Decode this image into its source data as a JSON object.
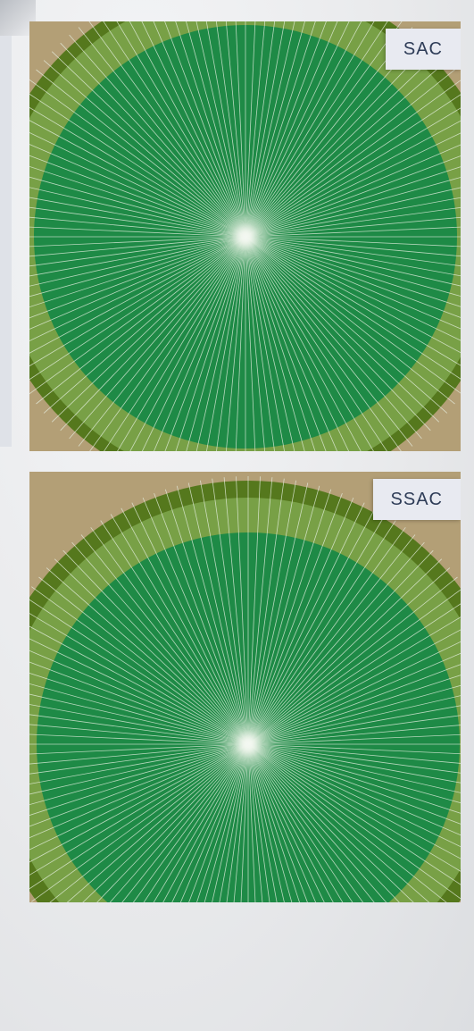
{
  "panels": [
    {
      "label": "SAC",
      "colors": {
        "soil": "#b39f76",
        "outer_ring": "#55781d",
        "wetted_zone": "#78a046",
        "center_field": "#1e8a46",
        "spokes": "#e8f2e4"
      },
      "spoke_count": 140,
      "icon": "center-pivot-field"
    },
    {
      "label": "SSAC",
      "colors": {
        "soil": "#b39f76",
        "outer_ring": "#55781d",
        "wetted_zone": "#78a046",
        "center_field": "#1e8a46",
        "spokes": "#e8f2e4"
      },
      "spoke_count": 140,
      "icon": "center-pivot-field"
    }
  ]
}
